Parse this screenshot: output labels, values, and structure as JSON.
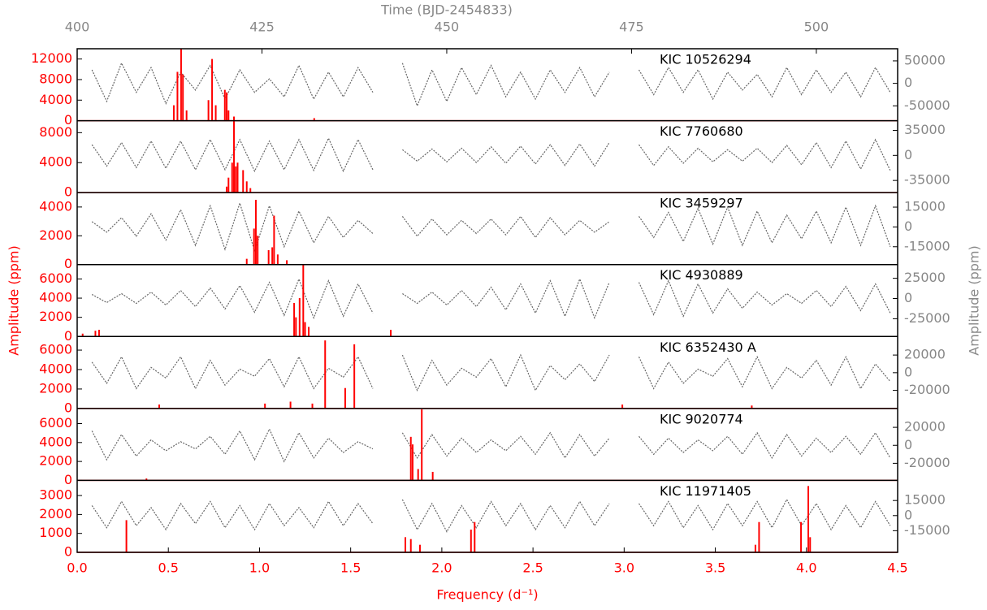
{
  "chart_data": {
    "type": "line",
    "x_label": "Frequency (d⁻¹)",
    "x2_label": "Time (BJD-2454833)",
    "y_label": "Amplitude (ppm)",
    "y2_label": "Amplitude (ppm)",
    "xlim": [
      0,
      4.5
    ],
    "xticks": [
      {
        "value": 0,
        "label": "0.0"
      },
      0.5,
      {
        "value": 1,
        "label": "1.0"
      },
      1.5,
      {
        "value": 2,
        "label": "2.0"
      },
      2.5,
      {
        "value": 3,
        "label": "3.0"
      },
      3.5,
      {
        "value": 4,
        "label": "4.0"
      },
      4.5
    ],
    "x2lim": [
      400,
      511
    ],
    "x2ticks": [
      400,
      425,
      450,
      475,
      500
    ],
    "periodogram_color": "#ff0000",
    "light_curve_color": "#666666",
    "time": [
      402,
      404,
      406,
      408,
      410,
      412,
      414,
      416,
      418,
      420,
      422,
      424,
      426,
      428,
      430,
      432,
      434,
      436,
      438,
      440,
      442,
      444,
      446,
      448,
      450,
      452,
      454,
      456,
      458,
      460,
      462,
      464,
      466,
      468,
      470,
      472,
      474,
      476,
      478,
      480,
      482,
      484,
      486,
      488,
      490,
      492,
      494,
      496,
      498,
      500,
      502,
      504,
      506,
      508,
      510
    ],
    "panels": [
      {
        "label": "KIC 10526294",
        "ylim": [
          0,
          14000
        ],
        "yticks": [
          0,
          4000,
          8000,
          12000
        ],
        "y2lim": [
          -83000,
          77000
        ],
        "y2ticks": [
          -50000,
          0,
          50000
        ],
        "peaks": {
          "freq": [
            0.53,
            0.55,
            0.57,
            0.58,
            0.6,
            0.72,
            0.74,
            0.76,
            0.81,
            0.82,
            0.83,
            0.86,
            1.3
          ],
          "amp": [
            3000,
            9500,
            14000,
            9000,
            2000,
            4000,
            12000,
            3000,
            6000,
            5500,
            2000,
            800,
            500
          ]
        },
        "light_curve": [
          30000,
          -40000,
          45000,
          -20000,
          35000,
          -45000,
          25000,
          -15000,
          40000,
          -35000,
          30000,
          -20000,
          10000,
          -30000,
          40000,
          -35000,
          25000,
          -30000,
          35000,
          -20000,
          null,
          45000,
          -50000,
          30000,
          -40000,
          35000,
          -25000,
          40000,
          -30000,
          25000,
          -35000,
          30000,
          -20000,
          35000,
          -30000,
          25000,
          null,
          30000,
          -25000,
          35000,
          -20000,
          30000,
          -35000,
          25000,
          -15000,
          20000,
          -30000,
          35000,
          -25000,
          30000,
          -20000,
          25000,
          -30000,
          35000,
          -20000
        ]
      },
      {
        "label": "KIC 7760680",
        "ylim": [
          0,
          9600
        ],
        "yticks": [
          0,
          4000,
          8000
        ],
        "y2lim": [
          -52000,
          48500
        ],
        "y2ticks": [
          -35000,
          0,
          35000
        ],
        "peaks": {
          "freq": [
            0.82,
            0.83,
            0.85,
            0.86,
            0.87,
            0.88,
            0.91,
            0.93,
            0.95
          ],
          "amp": [
            800,
            2000,
            4000,
            9600,
            3500,
            4000,
            3000,
            1500,
            600
          ]
        },
        "light_curve": [
          15000,
          -15000,
          18000,
          -17000,
          20000,
          -18000,
          20000,
          -20000,
          22000,
          -20000,
          22000,
          -22000,
          20000,
          -20000,
          22000,
          -21000,
          24000,
          -22000,
          22000,
          -20000,
          null,
          8000,
          -8000,
          9000,
          -9000,
          10000,
          -10000,
          12000,
          -11000,
          13000,
          -12000,
          15000,
          -14000,
          16000,
          -15000,
          18000,
          null,
          15000,
          -14000,
          12000,
          -11000,
          10000,
          -9000,
          8000,
          -8000,
          10000,
          -10000,
          14000,
          -13000,
          18000,
          -17000,
          20000,
          -19000,
          22000,
          -21000
        ]
      },
      {
        "label": "KIC 3459297",
        "ylim": [
          0,
          5000
        ],
        "yticks": [
          0,
          2000,
          4000
        ],
        "y2lim": [
          -28500,
          26000
        ],
        "y2ticks": [
          -15000,
          0,
          15000
        ],
        "peaks": {
          "freq": [
            0.93,
            0.97,
            0.98,
            0.99,
            1.05,
            1.07,
            1.08,
            1.1,
            1.15
          ],
          "amp": [
            400,
            2500,
            4500,
            2000,
            1000,
            1200,
            3400,
            700,
            300
          ]
        },
        "light_curve": [
          4000,
          -4000,
          7000,
          -7000,
          10000,
          -10000,
          13000,
          -14000,
          16000,
          -17000,
          18000,
          -18000,
          16000,
          -15000,
          12000,
          -12000,
          8000,
          -8000,
          5000,
          -5000,
          null,
          8000,
          -7000,
          6000,
          -6000,
          5000,
          -5000,
          6000,
          -6000,
          8000,
          -8000,
          7000,
          -6000,
          5000,
          -4000,
          4000,
          null,
          8000,
          -8000,
          11000,
          -11000,
          14000,
          -13000,
          15000,
          -14000,
          12000,
          -12000,
          9000,
          -9000,
          12000,
          -12000,
          15000,
          -14000,
          16000,
          -15000
        ]
      },
      {
        "label": "KIC 4930889",
        "ylim": [
          0,
          7500
        ],
        "yticks": [
          0,
          2000,
          4000,
          6000
        ],
        "y2lim": [
          -47000,
          42000
        ],
        "y2ticks": [
          -25000,
          0,
          25000
        ],
        "peaks": {
          "freq": [
            0.03,
            0.1,
            0.12,
            1.19,
            1.2,
            1.22,
            1.24,
            1.25,
            1.27,
            1.72
          ],
          "amp": [
            300,
            600,
            700,
            3500,
            2000,
            4000,
            7500,
            1500,
            1000,
            700
          ]
        },
        "light_curve": [
          5000,
          -5000,
          6000,
          -6000,
          8000,
          -8000,
          10000,
          -10000,
          13000,
          -13000,
          16000,
          -17000,
          20000,
          -21000,
          24000,
          -24000,
          22000,
          -22000,
          18000,
          -18000,
          null,
          6000,
          -6000,
          8000,
          -8000,
          10000,
          -10000,
          14000,
          -14000,
          18000,
          -18000,
          22000,
          -22000,
          24000,
          -24000,
          20000,
          null,
          20000,
          -20000,
          22000,
          -22000,
          18000,
          -18000,
          12000,
          -12000,
          8000,
          -8000,
          6000,
          -6000,
          10000,
          -10000,
          15000,
          -15000,
          18000,
          -18000
        ]
      },
      {
        "label": "KIC 6352430 A",
        "ylim": [
          0,
          7400
        ],
        "yticks": [
          0,
          2000,
          4000,
          6000
        ],
        "y2lim": [
          -40500,
          41000
        ],
        "y2ticks": [
          -20000,
          0,
          20000
        ],
        "peaks": {
          "freq": [
            0.45,
            1.03,
            1.17,
            1.29,
            1.36,
            1.47,
            1.52,
            2.99,
            3.7
          ],
          "amp": [
            400,
            500,
            700,
            500,
            7000,
            2100,
            6600,
            400,
            300
          ]
        },
        "light_curve": [
          12000,
          -12000,
          18000,
          -18000,
          6000,
          -6000,
          18000,
          -18000,
          14000,
          -14000,
          4000,
          -4000,
          16000,
          -16000,
          18000,
          -18000,
          5000,
          -5000,
          18000,
          -18000,
          null,
          20000,
          -20000,
          14000,
          -14000,
          5000,
          -5000,
          16000,
          -16000,
          20000,
          -20000,
          8000,
          -8000,
          10000,
          -10000,
          20000,
          null,
          18000,
          -18000,
          12000,
          -12000,
          4000,
          -4000,
          16000,
          -16000,
          18000,
          -18000,
          6000,
          -6000,
          14000,
          -14000,
          18000,
          -18000,
          10000,
          -10000
        ]
      },
      {
        "label": "KIC 9020774",
        "ylim": [
          0,
          7600
        ],
        "yticks": [
          0,
          2000,
          4000,
          6000
        ],
        "y2lim": [
          -39000,
          41000
        ],
        "y2ticks": [
          -20000,
          0,
          20000
        ],
        "peaks": {
          "freq": [
            0.38,
            1.83,
            1.84,
            1.87,
            1.89,
            1.95
          ],
          "amp": [
            200,
            4600,
            3800,
            1200,
            7500,
            900
          ]
        },
        "light_curve": [
          16000,
          -16000,
          12000,
          -12000,
          6000,
          -6000,
          4000,
          -4000,
          10000,
          -10000,
          16000,
          -16000,
          18000,
          -18000,
          14000,
          -14000,
          8000,
          -8000,
          4000,
          -4000,
          null,
          14000,
          -14000,
          12000,
          -12000,
          8000,
          -8000,
          6000,
          -6000,
          10000,
          -10000,
          14000,
          -14000,
          12000,
          -12000,
          8000,
          null,
          10000,
          -10000,
          8000,
          -8000,
          6000,
          -6000,
          10000,
          -10000,
          14000,
          -14000,
          12000,
          -12000,
          8000,
          -8000,
          10000,
          -10000,
          14000,
          -14000
        ]
      },
      {
        "label": "KIC 11971405",
        "ylim": [
          0,
          3800
        ],
        "yticks": [
          0,
          1000,
          2000,
          3000
        ],
        "y2lim": [
          -36500,
          35000
        ],
        "y2ticks": [
          -15000,
          0,
          15000
        ],
        "peaks": {
          "freq": [
            0.27,
            1.8,
            1.83,
            1.88,
            2.16,
            2.18,
            3.72,
            3.74,
            3.97,
            4.01,
            4.02
          ],
          "amp": [
            1700,
            800,
            700,
            400,
            1200,
            1600,
            400,
            1600,
            1600,
            3500,
            800
          ]
        },
        "light_curve": [
          10000,
          -12000,
          14000,
          -10000,
          8000,
          -14000,
          12000,
          -8000,
          14000,
          -12000,
          10000,
          -14000,
          12000,
          -10000,
          8000,
          -12000,
          14000,
          -10000,
          12000,
          -8000,
          null,
          16000,
          -14000,
          12000,
          -16000,
          10000,
          -12000,
          14000,
          -10000,
          12000,
          -14000,
          10000,
          -12000,
          14000,
          -10000,
          12000,
          null,
          12000,
          -10000,
          14000,
          -12000,
          10000,
          -14000,
          12000,
          -10000,
          14000,
          -12000,
          16000,
          -10000,
          12000,
          -14000,
          10000,
          -12000,
          14000,
          -10000
        ]
      }
    ]
  }
}
